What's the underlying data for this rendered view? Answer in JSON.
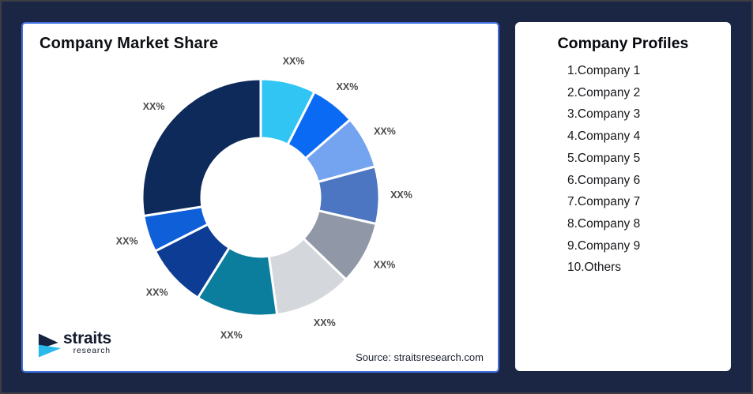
{
  "frame": {
    "background_color": "#1b2644",
    "outer_border_color": "#3d3e42"
  },
  "chart_card": {
    "border_color": "#4070e0",
    "background_color": "#ffffff"
  },
  "chart_data": {
    "type": "pie",
    "subtype": "donut",
    "title": "Company Market Share",
    "source": "Source: straitsresearch.com",
    "direction": "clockwise",
    "start_angle_deg": 0,
    "inner_radius_ratio": 0.5,
    "data_labels_masked": true,
    "label_color": "#4a4a4a",
    "segments": [
      {
        "label": "XX%",
        "share_pct_est": 7.5,
        "color": "#30c5f2"
      },
      {
        "label": "XX%",
        "share_pct_est": 6.1,
        "color": "#0b6af3"
      },
      {
        "label": "XX%",
        "share_pct_est": 7.2,
        "color": "#74a4f0"
      },
      {
        "label": "XX%",
        "share_pct_est": 7.8,
        "color": "#4c76c2"
      },
      {
        "label": "XX%",
        "share_pct_est": 8.6,
        "color": "#9097a6"
      },
      {
        "label": "XX%",
        "share_pct_est": 10.6,
        "color": "#d4d7dc"
      },
      {
        "label": "XX%",
        "share_pct_est": 11.1,
        "color": "#0b7d9d"
      },
      {
        "label": "XX%",
        "share_pct_est": 8.6,
        "color": "#0d3c94"
      },
      {
        "label": "XX%",
        "share_pct_est": 5.0,
        "color": "#0f5fd9"
      },
      {
        "label": "XX%",
        "share_pct_est": 27.5,
        "color": "#0e2a5a"
      }
    ]
  },
  "brand": {
    "name": "straits",
    "sub": "research",
    "navy": "#16233f",
    "cyan": "#29b9ec"
  },
  "profiles_card": {
    "title": "Company Profiles",
    "items": [
      "1.Company 1",
      "2.Company 2",
      "3.Company 3",
      "4.Company 4",
      "5.Company 5",
      "6.Company 6",
      "7.Company 7",
      "8.Company 8",
      "9.Company 9",
      "10.Others"
    ]
  }
}
